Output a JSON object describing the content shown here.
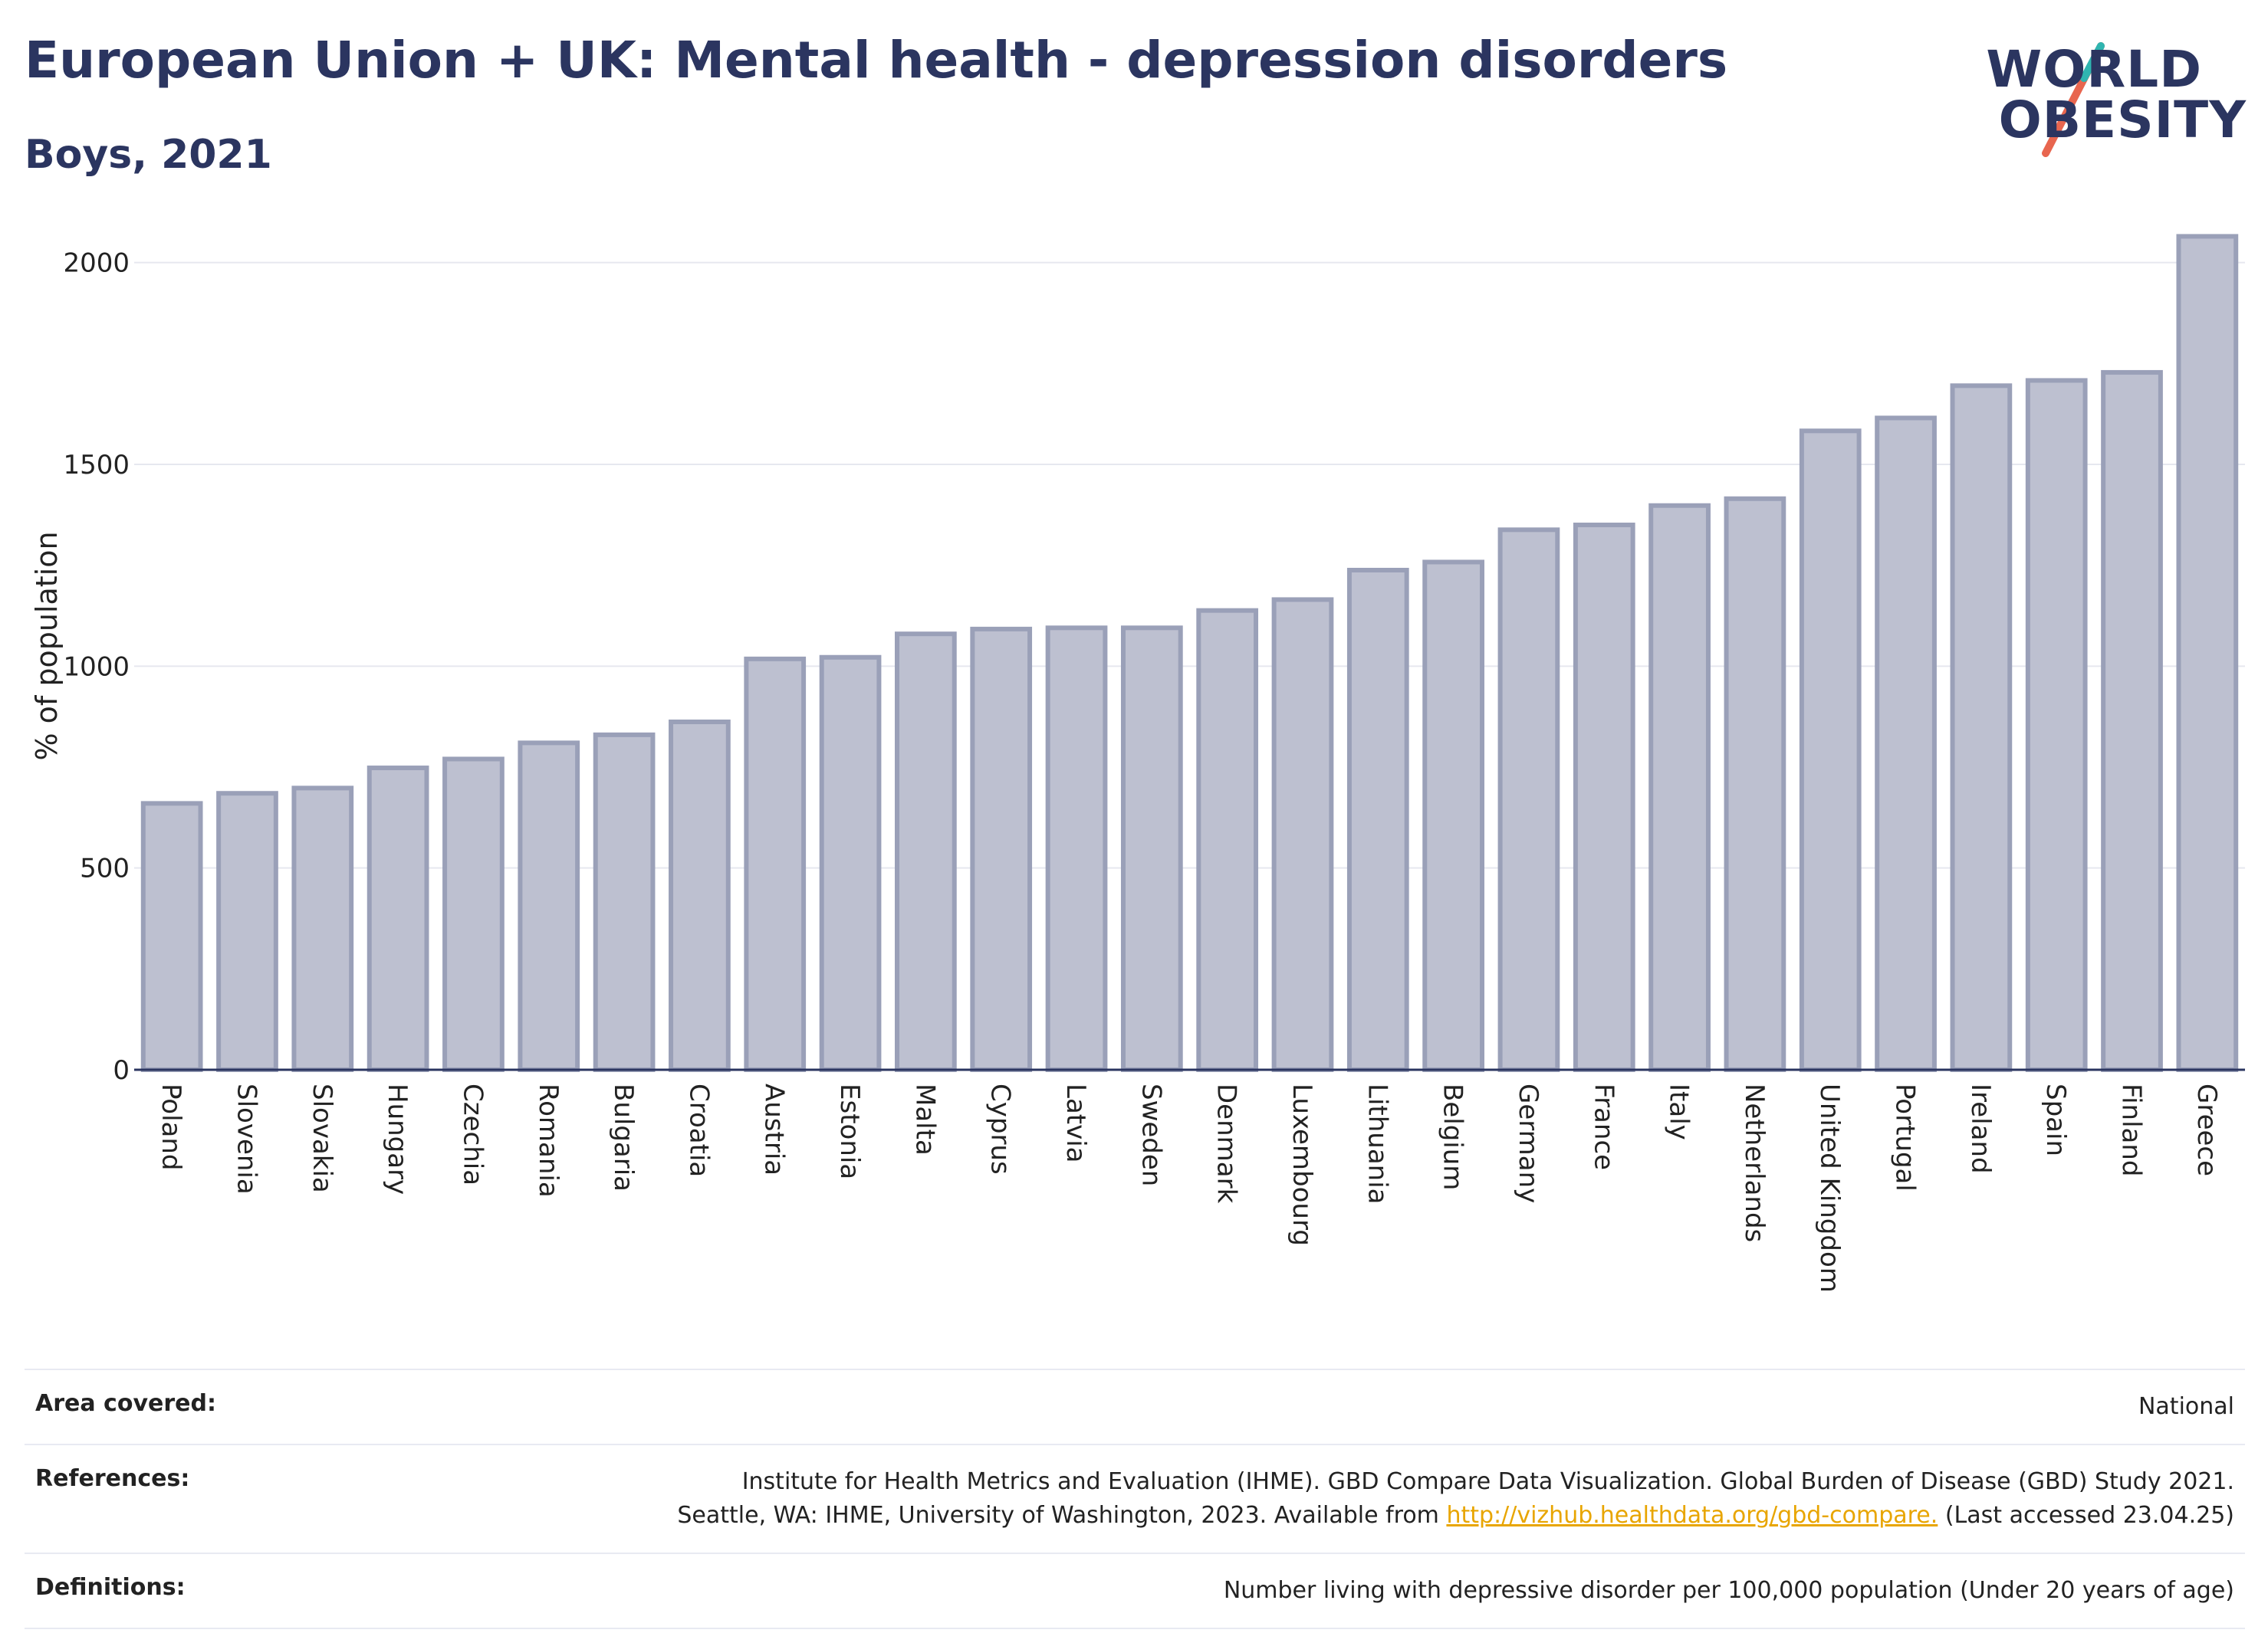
{
  "header": {
    "title": "European Union + UK: Mental health - depression disorders",
    "subtitle": "Boys, 2021"
  },
  "logo": {
    "line1": "WORLD",
    "line2": "OBESITY",
    "colors": [
      "#2b3560",
      "#e8664f",
      "#2fb5b0"
    ]
  },
  "chart_data": {
    "type": "bar",
    "ylabel": "% of population",
    "ylim": [
      0,
      2100
    ],
    "yticks": [
      0,
      500,
      1000,
      1500,
      2000
    ],
    "grid": true,
    "bar_color": "#bdc0d0",
    "bar_edge_color": "#9aa0b8",
    "categories": [
      "Poland",
      "Slovenia",
      "Slovakia",
      "Hungary",
      "Czechia",
      "Romania",
      "Bulgaria",
      "Croatia",
      "Austria",
      "Estonia",
      "Malta",
      "Cyprus",
      "Latvia",
      "Sweden",
      "Denmark",
      "Luxembourg",
      "Lithuania",
      "Belgium",
      "Germany",
      "France",
      "Italy",
      "Netherlands",
      "United Kingdom",
      "Portugal",
      "Ireland",
      "Spain",
      "Finland",
      "Greece"
    ],
    "values": [
      660,
      685,
      698,
      748,
      770,
      810,
      830,
      862,
      1018,
      1022,
      1080,
      1092,
      1095,
      1095,
      1138,
      1165,
      1238,
      1258,
      1338,
      1350,
      1398,
      1415,
      1583,
      1615,
      1695,
      1708,
      1728,
      2065
    ]
  },
  "footer": {
    "area_label": "Area covered:",
    "area_value": "National",
    "references_label": "References:",
    "references_line1": "Institute for Health Metrics and Evaluation (IHME). GBD Compare Data Visualization. Global Burden of Disease (GBD) Study 2021.",
    "references_line2_pre": "Seattle, WA: IHME, University of Washington, 2023. Available from ",
    "references_link": "http://vizhub.healthdata.org/gbd-compare.",
    "references_line2_post": " (Last accessed 23.04.25)",
    "definitions_label": "Definitions:",
    "definitions_value": "Number living with depressive disorder per 100,000 population (Under 20 years of age)"
  }
}
